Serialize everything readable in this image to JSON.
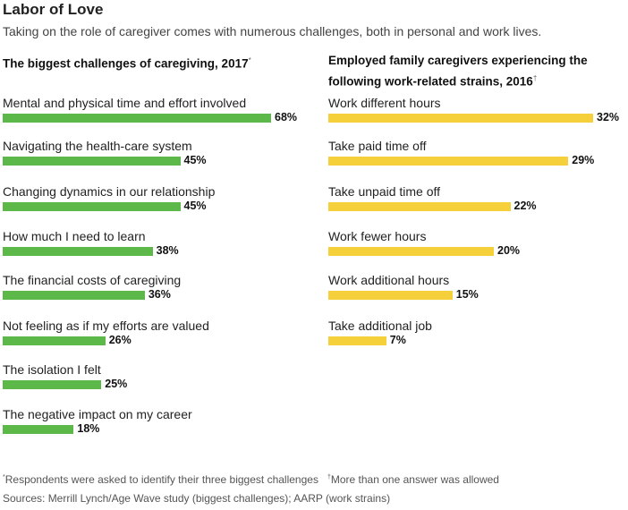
{
  "header": {
    "title": "Labor of Love",
    "subtitle": "Taking on the role of caregiver comes with numerous challenges, both in personal and work lives."
  },
  "left_panel": {
    "heading": "The biggest challenges of caregiving, 2017",
    "heading_mark": "*"
  },
  "right_panel": {
    "heading_line1": "Employed family caregivers experiencing the",
    "heading_line2": "following work-related strains, 2016",
    "heading_mark": "†"
  },
  "footer": {
    "note1_mark": "*",
    "note1": "Respondents were asked to identify their three biggest challenges",
    "note2_mark": "†",
    "note2": "More than one answer was allowed",
    "sources": "Sources: Merrill Lynch/Age Wave study (biggest challenges); AARP (work strains)"
  },
  "chart_data": [
    {
      "type": "bar",
      "orientation": "horizontal",
      "title": "The biggest challenges of caregiving, 2017",
      "unit": "%",
      "color": "#5cb848",
      "categories": [
        "Mental and physical time and effort involved",
        "Navigating the health-care system",
        "Changing dynamics in our relationship",
        "How much I need to learn",
        "The financial costs of caregiving",
        "Not feeling as if my efforts are valued",
        "The isolation I felt",
        "The negative impact on my career"
      ],
      "values": [
        68,
        45,
        45,
        38,
        36,
        26,
        25,
        18
      ],
      "xlim": [
        0,
        68
      ]
    },
    {
      "type": "bar",
      "orientation": "horizontal",
      "title": "Employed family caregivers experiencing the following work-related strains, 2016",
      "unit": "%",
      "color": "#f5d03a",
      "categories": [
        "Work different hours",
        "Take paid time off",
        "Take unpaid time off",
        "Work fewer hours",
        "Work additional hours",
        "Take additional job"
      ],
      "values": [
        32,
        29,
        22,
        20,
        15,
        7
      ],
      "xlim": [
        0,
        32
      ]
    }
  ]
}
